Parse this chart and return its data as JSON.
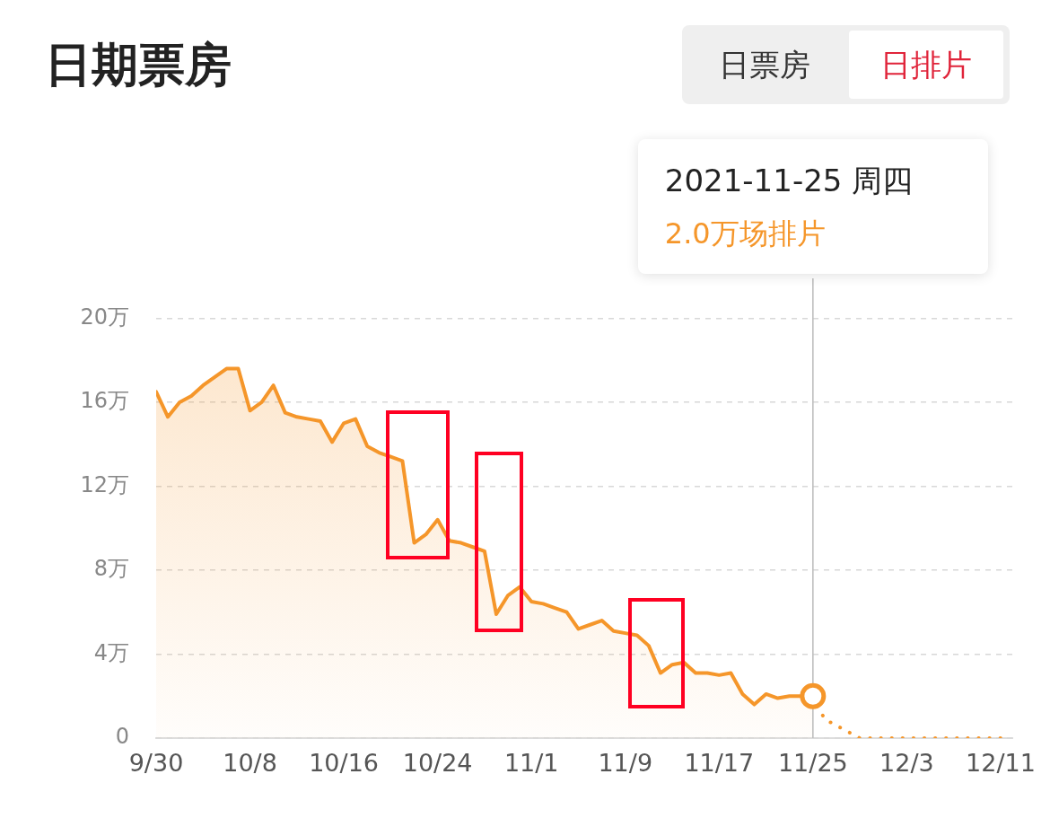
{
  "chart_data": {
    "type": "area",
    "title": "日期票房",
    "series": [
      {
        "type": "area",
        "color": "#f5962a",
        "line_style": "solid",
        "x": [
          "2021-09-30",
          "2021-10-01",
          "2021-10-02",
          "2021-10-03",
          "2021-10-04",
          "2021-10-05",
          "2021-10-06",
          "2021-10-07",
          "2021-10-08",
          "2021-10-09",
          "2021-10-10",
          "2021-10-11",
          "2021-10-12",
          "2021-10-13",
          "2021-10-14",
          "2021-10-15",
          "2021-10-16",
          "2021-10-17",
          "2021-10-18",
          "2021-10-19",
          "2021-10-20",
          "2021-10-21",
          "2021-10-22",
          "2021-10-23",
          "2021-10-24",
          "2021-10-25",
          "2021-10-26",
          "2021-10-27",
          "2021-10-28",
          "2021-10-29",
          "2021-10-30",
          "2021-10-31",
          "2021-11-01",
          "2021-11-02",
          "2021-11-03",
          "2021-11-04",
          "2021-11-05",
          "2021-11-06",
          "2021-11-07",
          "2021-11-08",
          "2021-11-09",
          "2021-11-10",
          "2021-11-11",
          "2021-11-12",
          "2021-11-13",
          "2021-11-14",
          "2021-11-15",
          "2021-11-16",
          "2021-11-17",
          "2021-11-18",
          "2021-11-19",
          "2021-11-20",
          "2021-11-21",
          "2021-11-22",
          "2021-11-23",
          "2021-11-24",
          "2021-11-25"
        ],
        "values": [
          16.5,
          15.3,
          16.0,
          16.3,
          16.8,
          17.2,
          17.6,
          17.6,
          15.6,
          16.0,
          16.8,
          15.5,
          15.3,
          15.2,
          15.1,
          14.1,
          15.0,
          15.2,
          13.9,
          13.6,
          13.4,
          13.2,
          9.3,
          9.7,
          10.4,
          9.4,
          9.3,
          9.1,
          8.9,
          5.9,
          6.8,
          7.2,
          6.5,
          6.4,
          6.2,
          6.0,
          5.2,
          5.4,
          5.6,
          5.1,
          5.0,
          4.9,
          4.4,
          3.1,
          3.5,
          3.6,
          3.1,
          3.1,
          3.0,
          3.1,
          2.1,
          1.6,
          2.1,
          1.9,
          2.0,
          2.0,
          2.0
        ]
      },
      {
        "type": "line",
        "color": "#f5962a",
        "line_style": "dotted",
        "x": [
          "2021-11-25",
          "2021-11-26",
          "2021-11-27",
          "2021-11-28",
          "2021-11-29",
          "2021-12-11"
        ],
        "values": [
          2.0,
          0.9,
          0.6,
          0.3,
          0,
          0
        ]
      }
    ],
    "xlim": [
      "2021-09-30",
      "2021-12-12"
    ],
    "xticks": [
      {
        "value": "2021-09-30",
        "label": "9/30"
      },
      {
        "value": "2021-10-08",
        "label": "10/8"
      },
      {
        "value": "2021-10-16",
        "label": "10/16"
      },
      {
        "value": "2021-10-24",
        "label": "10/24"
      },
      {
        "value": "2021-11-01",
        "label": "11/1"
      },
      {
        "value": "2021-11-09",
        "label": "11/9"
      },
      {
        "value": "2021-11-17",
        "label": "11/17"
      },
      {
        "value": "2021-11-25",
        "label": "11/25"
      },
      {
        "value": "2021-12-03",
        "label": "12/3"
      },
      {
        "value": "2021-12-11",
        "label": "12/11"
      }
    ],
    "ylim": [
      0,
      20
    ],
    "yticks": [
      0,
      {
        "value": 4,
        "label": "4万"
      },
      {
        "value": 8,
        "label": "8万"
      },
      {
        "value": 12,
        "label": "12万"
      },
      {
        "value": 16,
        "label": "16万"
      },
      {
        "value": 20,
        "label": "20万"
      }
    ],
    "grid": "y",
    "legend": false,
    "marker": "none",
    "ref_lines": [
      {
        "axis": "x",
        "value": "2021-11-25",
        "color": "#bbbbbb"
      }
    ],
    "annotations": [
      "日票房",
      "日排片",
      "2021-11-25 周四",
      "2.0万场排片"
    ]
  }
}
